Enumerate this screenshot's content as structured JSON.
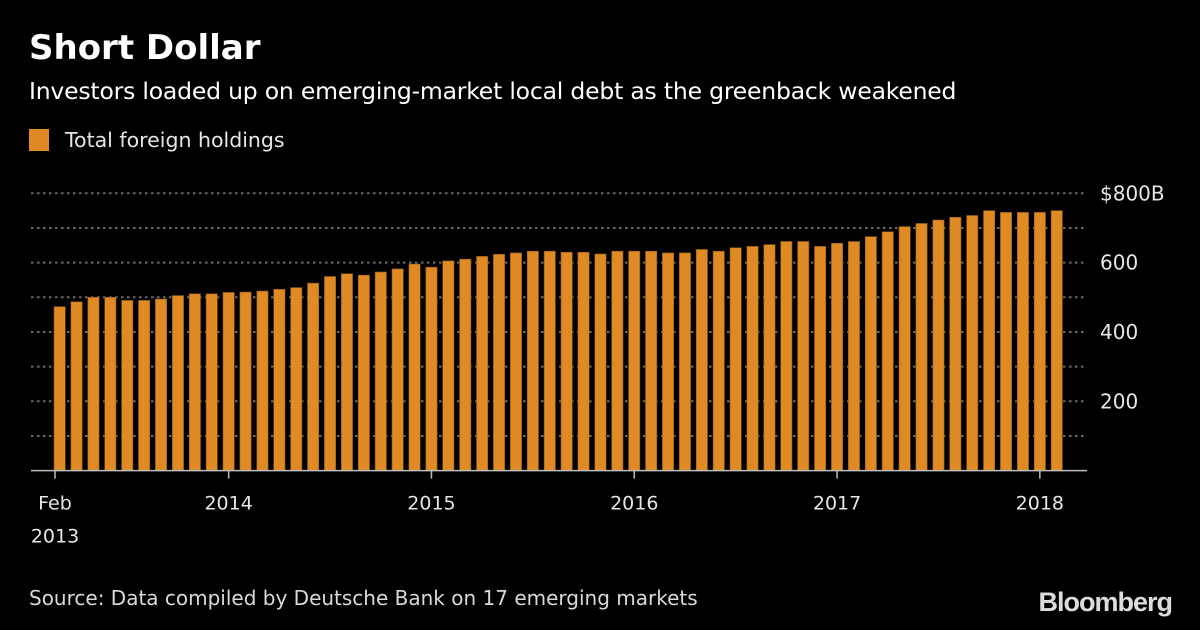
{
  "header": {
    "title": "Short Dollar",
    "subtitle": "Investors loaded up on emerging-market local debt as the greenback weakened"
  },
  "legend": {
    "items": [
      {
        "label": "Total foreign holdings",
        "color": "#DF8A25"
      }
    ]
  },
  "footer": {
    "source": "Source: Data compiled by Deutsche Bank on 17 emerging markets",
    "brand": "Bloomberg"
  },
  "chart_data": {
    "type": "bar",
    "title": "Short Dollar",
    "subtitle": "Investors loaded up on emerging-market local debt as the greenback weakened",
    "xlabel": "",
    "ylabel": "",
    "y_unit": "$B",
    "ylim": [
      0,
      800
    ],
    "y_ticks": [
      {
        "value": 800,
        "label": "$800B"
      },
      {
        "value": 600,
        "label": "600"
      },
      {
        "value": 400,
        "label": "400"
      },
      {
        "value": 200,
        "label": "200"
      }
    ],
    "gridlines": [
      100,
      200,
      300,
      400,
      500,
      600,
      700,
      800
    ],
    "grid": true,
    "y_axis_side": "right",
    "legend_position": "top-left",
    "x_ticks": [
      {
        "index": 0,
        "label": "Feb",
        "label2": "2013",
        "align": "bar-start"
      },
      {
        "index": 10,
        "label": "2014"
      },
      {
        "index": 22,
        "label": "2015"
      },
      {
        "index": 34,
        "label": "2016"
      },
      {
        "index": 46,
        "label": "2017"
      },
      {
        "index": 58,
        "label": "2018"
      }
    ],
    "series": [
      {
        "name": "Total foreign holdings",
        "color": "#DF8A25",
        "values": [
          473,
          487,
          500,
          500,
          491,
          491,
          495,
          505,
          510,
          510,
          514,
          515,
          518,
          523,
          528,
          541,
          560,
          568,
          564,
          573,
          582,
          596,
          587,
          605,
          610,
          618,
          624,
          628,
          633,
          633,
          630,
          630,
          625,
          633,
          633,
          633,
          628,
          628,
          638,
          633,
          643,
          647,
          652,
          661,
          661,
          647,
          656,
          661,
          675,
          689,
          704,
          713,
          723,
          731,
          736,
          750,
          745,
          745,
          745,
          750
        ]
      }
    ],
    "source": "Source: Data compiled by Deutsche Bank on 17 emerging markets"
  }
}
